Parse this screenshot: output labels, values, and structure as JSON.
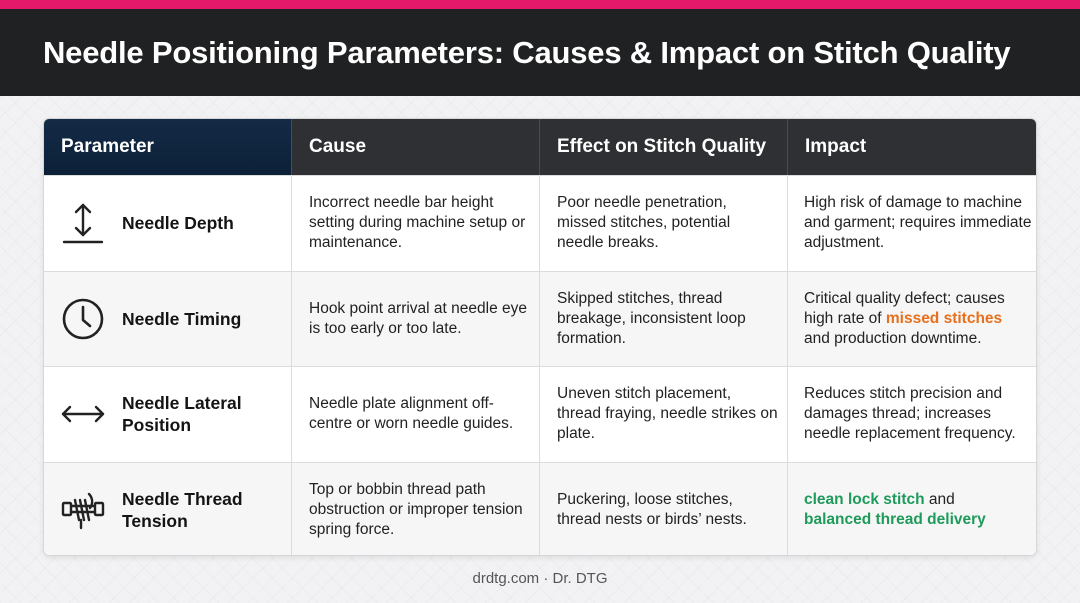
{
  "title": "Needle Positioning Parameters: Causes & Impact on Stitch Quality",
  "colors": {
    "accent_stripe": "#e5196a",
    "highlight_orange": "#e8701c",
    "highlight_green": "#1e9b5a",
    "header_first": "#0c2038",
    "header_rest": "#2e3033"
  },
  "table": {
    "headers": [
      "Parameter",
      "Cause",
      "Effect on Stitch Quality",
      "Impact"
    ],
    "rows": [
      {
        "icon": "vertical-depth-arrow-icon",
        "parameter": "Needle Depth",
        "cause": "Incorrect needle bar height setting during machine setup or maintenance.",
        "effect": "Poor needle penetration, missed stitches, potential needle breaks.",
        "impact": {
          "before": "High risk of damage to machine and garment; requires immediate adjustment.",
          "highlight": "",
          "after": ""
        }
      },
      {
        "icon": "clock-icon",
        "parameter": "Needle Timing",
        "cause": "Hook point arrival at needle eye is too early or too late.",
        "effect": "Skipped stitches, thread breakage, inconsistent loop formation.",
        "impact": {
          "before": "Critical quality defect; causes high rate of ",
          "highlight": "missed stitches",
          "after": " and production downtime."
        }
      },
      {
        "icon": "horizontal-double-arrow-icon",
        "parameter": "Needle Lateral Position",
        "cause": "Needle plate alignment off-centre or worn needle guides.",
        "effect": "Uneven stitch placement, thread fraying, needle strikes on plate.",
        "impact": {
          "before": "Reduces stitch precision and damages thread; increases needle replacement frequency.",
          "highlight": "",
          "after": ""
        }
      },
      {
        "icon": "thread-tension-icon",
        "parameter": "Needle Thread Tension",
        "cause": "Top or bobbin thread path obstruction or improper tension spring force.",
        "effect": "Puckering, loose stitches, thread nests or birds’ nests.",
        "impact": {
          "highlight1": "clean lock stitch",
          "middle": " and",
          "highlight2": "balanced thread delivery"
        }
      }
    ]
  },
  "footer": "drdtg.com · Dr. DTG"
}
